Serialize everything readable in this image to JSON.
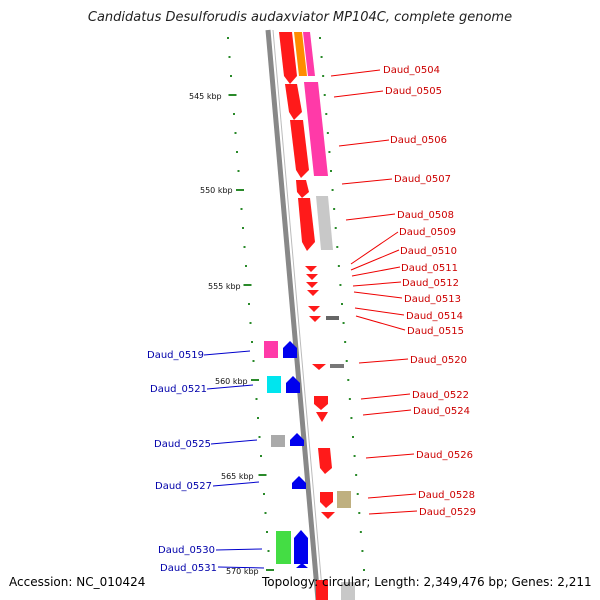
{
  "title": "Candidatus Desulforudis audaxviator MP104C, complete genome",
  "footer": {
    "accession": "Accession: NC_010424",
    "topology": "Topology: circular; Length: 2,349,476 bp; Genes: 2,211"
  },
  "colors": {
    "forward_strand": "#ff0000",
    "reverse_strand": "#0000ff",
    "label_right": "#cc0000",
    "label_left": "#0000aa",
    "backbone": "#888888",
    "tick": "#2a8a2a"
  },
  "scale_labels": [
    "545 kbp",
    "550 kbp",
    "555 kbp",
    "560 kbp",
    "565 kbp",
    "570 kbp"
  ],
  "genes_right": [
    {
      "id": "Daud_0504"
    },
    {
      "id": "Daud_0505"
    },
    {
      "id": "Daud_0506"
    },
    {
      "id": "Daud_0507"
    },
    {
      "id": "Daud_0508"
    },
    {
      "id": "Daud_0509"
    },
    {
      "id": "Daud_0510"
    },
    {
      "id": "Daud_0511"
    },
    {
      "id": "Daud_0512"
    },
    {
      "id": "Daud_0513"
    },
    {
      "id": "Daud_0514"
    },
    {
      "id": "Daud_0515"
    },
    {
      "id": "Daud_0520"
    },
    {
      "id": "Daud_0522"
    },
    {
      "id": "Daud_0524"
    },
    {
      "id": "Daud_0526"
    },
    {
      "id": "Daud_0528"
    },
    {
      "id": "Daud_0529"
    }
  ],
  "genes_left": [
    {
      "id": "Daud_0519"
    },
    {
      "id": "Daud_0521"
    },
    {
      "id": "Daud_0525"
    },
    {
      "id": "Daud_0527"
    },
    {
      "id": "Daud_0530"
    },
    {
      "id": "Daud_0531"
    }
  ]
}
